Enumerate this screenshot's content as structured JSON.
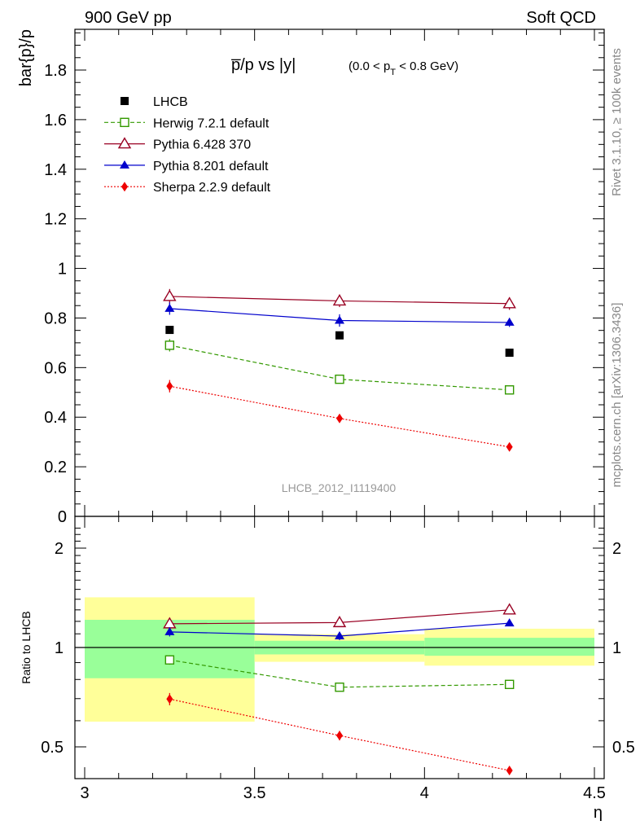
{
  "header": {
    "left": "900 GeV pp",
    "right": "Soft QCD"
  },
  "side_labels": {
    "rivet": "Rivet 3.1.10, ≥ 100k events",
    "mcplots": "mcplots.cern.ch [arXiv:1306.3436]"
  },
  "chart_data": {
    "type": "scatter",
    "title_main": "p̅/p vs |y|",
    "title_sub": "(0.0 < p",
    "title_sub_sub": "T",
    "title_sub_end": " < 0.8 GeV)",
    "analysis_label": "LHCB_2012_I1119400",
    "xlabel": "η",
    "ylabel_top": "bar{p}/p",
    "ylabel_bottom": "Ratio to LHCB",
    "xlim": [
      3.0,
      4.5
    ],
    "ylim_top": [
      0,
      1.97
    ],
    "ylim_bottom": [
      0.38,
      2.4
    ],
    "ratio_log_scale": true,
    "x_ticks": [
      "3",
      "3.5",
      "4",
      "4.5"
    ],
    "y_ticks_top": [
      "0",
      "0.2",
      "0.4",
      "0.6",
      "0.8",
      "1",
      "1.2",
      "1.4",
      "1.6",
      "1.8"
    ],
    "y_ticks_bottom": [
      "0.5",
      "1",
      "2"
    ],
    "x": [
      3.25,
      3.75,
      4.25
    ],
    "bins": [
      [
        3.0,
        3.5
      ],
      [
        3.5,
        4.0
      ],
      [
        4.0,
        4.5
      ]
    ],
    "data": {
      "name": "LHCB",
      "values": [
        0.752,
        0.73,
        0.66
      ],
      "color": "#000000"
    },
    "series": [
      {
        "name": "Herwig 7.2.1 default",
        "values": [
          0.69,
          0.553,
          0.51
        ],
        "errors": [
          0.025,
          0.015,
          0.012
        ],
        "ratio": [
          0.917,
          0.758,
          0.773
        ],
        "ratio_errors": [
          0.03,
          0.02,
          0.015
        ],
        "color": "#339900",
        "marker": "open-square",
        "dash": "5,3"
      },
      {
        "name": "Pythia 6.428 370",
        "values": [
          0.887,
          0.869,
          0.858
        ],
        "errors": [
          0.03,
          0.025,
          0.025
        ],
        "ratio": [
          1.18,
          1.19,
          1.3
        ],
        "ratio_errors": [
          0.04,
          0.03,
          0.035
        ],
        "color": "#990022",
        "marker": "open-triangle",
        "dash": ""
      },
      {
        "name": "Pythia 8.201 default",
        "values": [
          0.838,
          0.79,
          0.782
        ],
        "errors": [
          0.025,
          0.025,
          0.018
        ],
        "ratio": [
          1.115,
          1.083,
          1.185
        ],
        "ratio_errors": [
          0.035,
          0.03,
          0.025
        ],
        "color": "#0000cc",
        "marker": "filled-triangle",
        "dash": ""
      },
      {
        "name": "Sherpa 2.2.9 default",
        "values": [
          0.525,
          0.395,
          0.28
        ],
        "errors": [
          0.025,
          0.012,
          0.01
        ],
        "ratio": [
          0.698,
          0.541,
          0.424
        ],
        "ratio_errors": [
          0.03,
          0.018,
          0.012
        ],
        "color": "#ee0000",
        "marker": "filled-diamond",
        "dash": "2,2"
      }
    ],
    "uncertainty_bands": [
      {
        "bin": [
          3.0,
          3.5
        ],
        "inner": [
          0.807,
          1.213
        ],
        "outer": [
          0.596,
          1.419
        ]
      },
      {
        "bin": [
          3.5,
          4.0
        ],
        "inner": [
          0.953,
          1.048
        ],
        "outer": [
          0.905,
          1.097
        ]
      },
      {
        "bin": [
          4.0,
          4.5
        ],
        "inner": [
          0.944,
          1.07
        ],
        "outer": [
          0.881,
          1.14
        ]
      }
    ],
    "band_colors": {
      "inner": "#99ff99",
      "outer": "#ffff99"
    }
  }
}
